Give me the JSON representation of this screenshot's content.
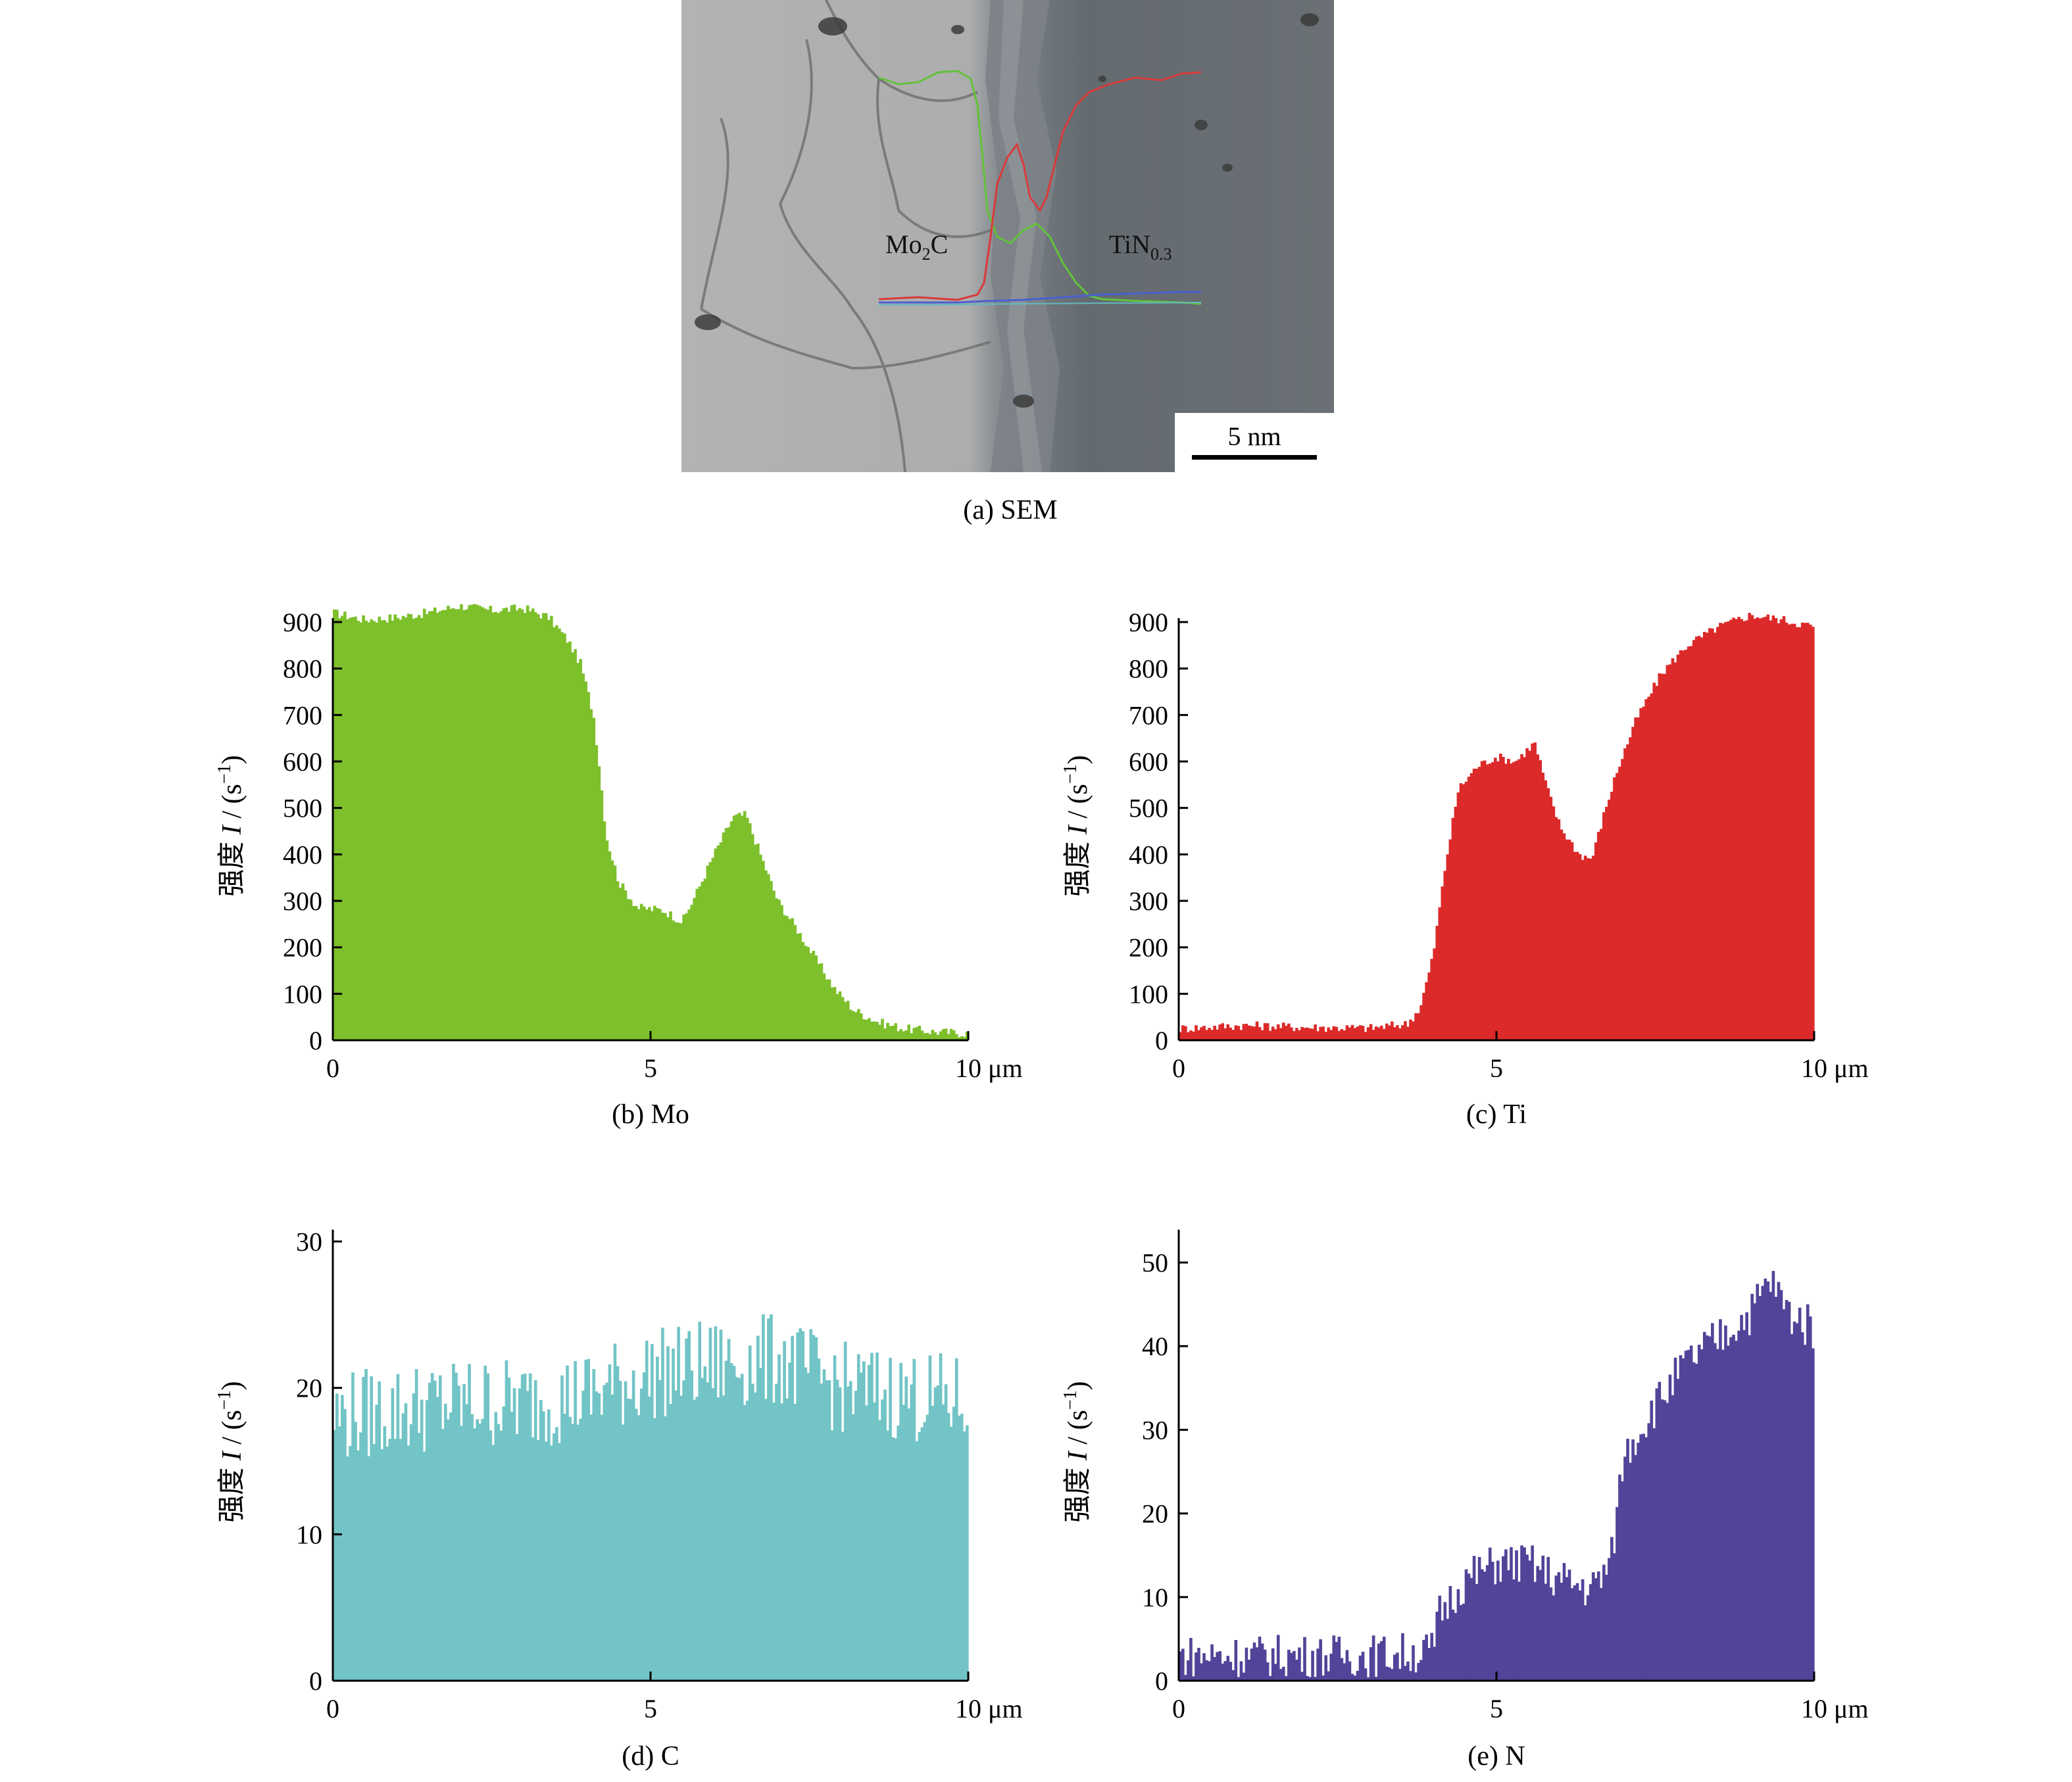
{
  "figure": {
    "sem_caption": "(a) SEM",
    "scale_bar_label": "5 nm",
    "phase_left_label": "Mo",
    "phase_left_sub": "2",
    "phase_left_tail": "C",
    "phase_right_label": "TiN",
    "phase_right_sub": "0.3"
  },
  "colors": {
    "mo": "#7dc02b",
    "ti": "#dc2a2a",
    "c": "#72c4c6",
    "n": "#514499"
  },
  "chart_data": [
    {
      "type": "bar",
      "panel": "b",
      "caption": "(b) Mo",
      "ylabel_prefix": "强度 ",
      "ylabel_var": "I",
      "ylabel_unit": " / (s",
      "ylabel_sup": "−1",
      "ylabel_close": ")",
      "xlim": [
        0,
        10
      ],
      "ylim": [
        0,
        900
      ],
      "xticks": [
        0,
        5,
        10
      ],
      "xtick_labels": [
        "0",
        "5",
        "10 μm"
      ],
      "yticks": [
        0,
        100,
        200,
        300,
        400,
        500,
        600,
        700,
        800,
        900
      ],
      "color": "#7dc02b",
      "profile": [
        [
          0,
          920
        ],
        [
          0.5,
          905
        ],
        [
          1.0,
          910
        ],
        [
          1.5,
          920
        ],
        [
          2.0,
          935
        ],
        [
          2.5,
          925
        ],
        [
          3.0,
          930
        ],
        [
          3.4,
          910
        ],
        [
          3.7,
          860
        ],
        [
          3.9,
          810
        ],
        [
          4.1,
          700
        ],
        [
          4.2,
          580
        ],
        [
          4.3,
          440
        ],
        [
          4.5,
          340
        ],
        [
          4.8,
          285
        ],
        [
          5.2,
          280
        ],
        [
          5.5,
          255
        ],
        [
          5.7,
          310
        ],
        [
          6.0,
          400
        ],
        [
          6.3,
          480
        ],
        [
          6.5,
          485
        ],
        [
          6.7,
          410
        ],
        [
          7.0,
          300
        ],
        [
          7.3,
          240
        ],
        [
          7.6,
          175
        ],
        [
          7.9,
          110
        ],
        [
          8.2,
          65
        ],
        [
          8.6,
          38
        ],
        [
          9.0,
          25
        ],
        [
          9.5,
          18
        ],
        [
          10.0,
          15
        ]
      ],
      "noise": 10
    },
    {
      "type": "bar",
      "panel": "c",
      "caption": "(c) Ti",
      "ylabel_prefix": "强度 ",
      "ylabel_var": "I",
      "ylabel_unit": " / (s",
      "ylabel_sup": "−1",
      "ylabel_close": ")",
      "xlim": [
        0,
        10
      ],
      "ylim": [
        0,
        900
      ],
      "xticks": [
        0,
        5,
        10
      ],
      "xtick_labels": [
        "0",
        "5",
        "10 μm"
      ],
      "yticks": [
        0,
        100,
        200,
        300,
        400,
        500,
        600,
        700,
        800,
        900
      ],
      "color": "#dc2a2a",
      "profile": [
        [
          0,
          25
        ],
        [
          1.0,
          32
        ],
        [
          2.0,
          28
        ],
        [
          3.0,
          26
        ],
        [
          3.6,
          35
        ],
        [
          3.8,
          70
        ],
        [
          4.0,
          180
        ],
        [
          4.2,
          380
        ],
        [
          4.4,
          540
        ],
        [
          4.7,
          590
        ],
        [
          5.0,
          610
        ],
        [
          5.3,
          600
        ],
        [
          5.6,
          640
        ],
        [
          5.8,
          540
        ],
        [
          6.0,
          460
        ],
        [
          6.3,
          400
        ],
        [
          6.5,
          390
        ],
        [
          6.7,
          490
        ],
        [
          6.9,
          580
        ],
        [
          7.2,
          690
        ],
        [
          7.6,
          790
        ],
        [
          8.0,
          850
        ],
        [
          8.5,
          890
        ],
        [
          9.0,
          915
        ],
        [
          9.5,
          905
        ],
        [
          10.0,
          890
        ]
      ],
      "noise": 10
    },
    {
      "type": "bar",
      "panel": "d",
      "caption": "(d) C",
      "ylabel_prefix": "强度 ",
      "ylabel_var": "I",
      "ylabel_unit": " / (s",
      "ylabel_sup": "−1",
      "ylabel_close": ")",
      "xlim": [
        0,
        10
      ],
      "ylim": [
        0,
        30
      ],
      "xticks": [
        0,
        5,
        10
      ],
      "xtick_labels": [
        "0",
        "5",
        "10 μm"
      ],
      "yticks": [
        0,
        10,
        20,
        30
      ],
      "color": "#72c4c6",
      "profile": [
        [
          0,
          18
        ],
        [
          1.0,
          18.5
        ],
        [
          2.0,
          19
        ],
        [
          3.0,
          19
        ],
        [
          4.0,
          19.5
        ],
        [
          5.0,
          21
        ],
        [
          6.0,
          21.5
        ],
        [
          7.0,
          22
        ],
        [
          8.0,
          20
        ],
        [
          9.0,
          19.5
        ],
        [
          10.0,
          19
        ]
      ],
      "noise": 3.2
    },
    {
      "type": "bar",
      "panel": "e",
      "caption": "(e) N",
      "ylabel_prefix": "强度 ",
      "ylabel_var": "I",
      "ylabel_unit": " / (s",
      "ylabel_sup": "−1",
      "ylabel_close": ")",
      "xlim": [
        0,
        10
      ],
      "ylim": [
        0,
        50
      ],
      "xticks": [
        0,
        5,
        10
      ],
      "xtick_labels": [
        "0",
        "5",
        "10 μm"
      ],
      "yticks": [
        0,
        10,
        20,
        30,
        40,
        50
      ],
      "color": "#514499",
      "profile": [
        [
          0,
          3
        ],
        [
          1.0,
          3
        ],
        [
          2.0,
          3
        ],
        [
          3.0,
          3
        ],
        [
          4.0,
          3.5
        ],
        [
          4.1,
          8
        ],
        [
          4.5,
          12
        ],
        [
          5.0,
          14
        ],
        [
          5.5,
          14
        ],
        [
          6.0,
          12
        ],
        [
          6.5,
          11
        ],
        [
          6.8,
          14
        ],
        [
          7.0,
          27
        ],
        [
          7.5,
          33
        ],
        [
          8.0,
          38
        ],
        [
          8.5,
          41
        ],
        [
          9.0,
          44
        ],
        [
          9.3,
          48
        ],
        [
          9.6,
          44
        ],
        [
          10.0,
          42
        ]
      ],
      "noise": 2.6
    }
  ]
}
